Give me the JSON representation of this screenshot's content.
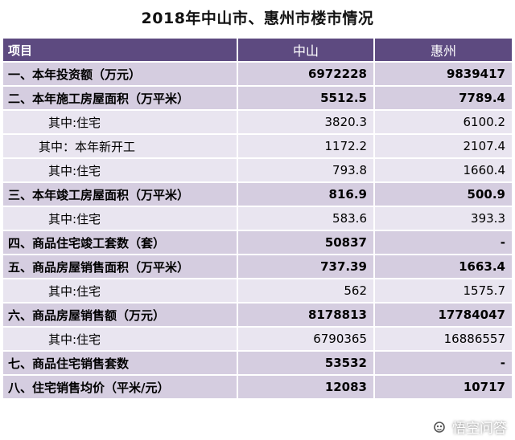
{
  "title": "2018年中山市、惠州市楼市情况",
  "header": {
    "label": "项目",
    "col1": "中山",
    "col2": "惠州"
  },
  "rows": [
    {
      "label": "一、本年投资额（万元）",
      "v1": "6972228",
      "v2": "9839417"
    },
    {
      "label": "二、本年施工房屋面积（万平米）",
      "v1": "5512.5",
      "v2": "7789.4"
    },
    {
      "label": "其中:住宅",
      "v1": "3820.3",
      "v2": "6100.2"
    },
    {
      "label": "其中：本年新开工",
      "v1": "1172.2",
      "v2": "2107.4"
    },
    {
      "label": "其中:住宅",
      "v1": "793.8",
      "v2": "1660.4"
    },
    {
      "label": "三、本年竣工房屋面积（万平米）",
      "v1": "816.9",
      "v2": "500.9"
    },
    {
      "label": "其中:住宅",
      "v1": "583.6",
      "v2": "393.3"
    },
    {
      "label": "四、商品住宅竣工套数（套）",
      "v1": "50837",
      "v2": "-"
    },
    {
      "label": "五、商品房屋销售面积（万平米）",
      "v1": "737.39",
      "v2": "1663.4"
    },
    {
      "label": "其中:住宅",
      "v1": "562",
      "v2": "1575.7"
    },
    {
      "label": "六、商品房屋销售额（万元）",
      "v1": "8178813",
      "v2": "17784047"
    },
    {
      "label": "其中:住宅",
      "v1": "6790365",
      "v2": "16886557"
    },
    {
      "label": "七、商品住宅销售套数",
      "v1": "53532",
      "v2": "-"
    },
    {
      "label": "八、住宅销售均价（平米/元）",
      "v1": "12083",
      "v2": "10717"
    }
  ],
  "watermark": {
    "text": "悟空问答",
    "icon": "wukong-logo-icon"
  },
  "colors": {
    "header": "#5d4a80",
    "main_row": "#d5cde0",
    "sub_row": "#e9e5f0"
  }
}
